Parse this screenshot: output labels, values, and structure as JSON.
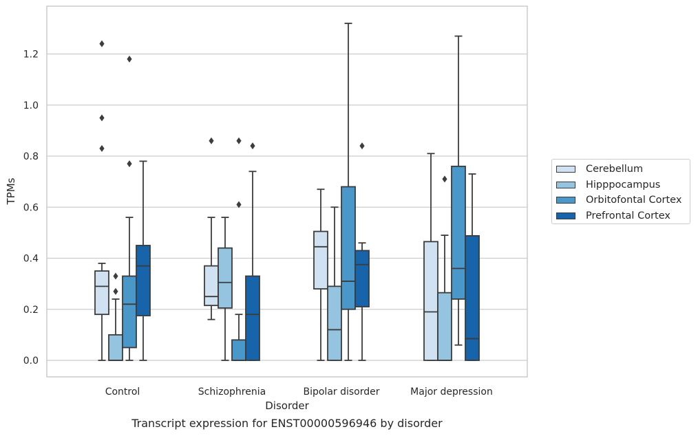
{
  "caption": "Transcript expression for ENST00000596946 by disorder",
  "chart_data": {
    "type": "box",
    "title": "",
    "xlabel": "Disorder",
    "ylabel": "TPMs",
    "ylim": [
      -0.065,
      1.38
    ],
    "yticks": [
      0.0,
      0.2,
      0.4,
      0.6,
      0.8,
      1.0,
      1.2
    ],
    "ytick_labels": [
      "0.0",
      "0.2",
      "0.4",
      "0.6",
      "0.8",
      "1.0",
      "1.2"
    ],
    "categories": [
      "Control",
      "Schizophrenia",
      "Bipolar disorder",
      "Major depression"
    ],
    "grid": "horizontal",
    "legend_position": "outside-right",
    "series": [
      {
        "name": "Cerebellum",
        "color": "#d0e1f2",
        "boxes": [
          {
            "whislo": 0.0,
            "q1": 0.18,
            "med": 0.29,
            "q3": 0.35,
            "whishi": 0.38,
            "fliers": [
              0.83,
              0.95,
              1.24
            ]
          },
          {
            "whislo": 0.16,
            "q1": 0.215,
            "med": 0.25,
            "q3": 0.37,
            "whishi": 0.56,
            "fliers": [
              0.86
            ]
          },
          {
            "whislo": 0.0,
            "q1": 0.28,
            "med": 0.445,
            "q3": 0.505,
            "whishi": 0.67,
            "fliers": []
          },
          {
            "whislo": 0.0,
            "q1": 0.0,
            "med": 0.19,
            "q3": 0.465,
            "whishi": 0.81,
            "fliers": []
          }
        ]
      },
      {
        "name": "Hipppocampus",
        "color": "#94c4df",
        "boxes": [
          {
            "whislo": 0.0,
            "q1": 0.0,
            "med": 0.0,
            "q3": 0.1,
            "whishi": 0.24,
            "fliers": [
              0.27,
              0.33
            ]
          },
          {
            "whislo": 0.0,
            "q1": 0.205,
            "med": 0.305,
            "q3": 0.44,
            "whishi": 0.56,
            "fliers": []
          },
          {
            "whislo": 0.0,
            "q1": 0.0,
            "med": 0.12,
            "q3": 0.29,
            "whishi": 0.6,
            "fliers": []
          },
          {
            "whislo": 0.0,
            "q1": 0.0,
            "med": 0.0,
            "q3": 0.265,
            "whishi": 0.49,
            "fliers": [
              0.71
            ]
          }
        ]
      },
      {
        "name": "Orbitofontal Cortex",
        "color": "#4a98c9",
        "boxes": [
          {
            "whislo": 0.0,
            "q1": 0.05,
            "med": 0.22,
            "q3": 0.33,
            "whishi": 0.56,
            "fliers": [
              0.77,
              1.18
            ]
          },
          {
            "whislo": 0.0,
            "q1": 0.0,
            "med": 0.0,
            "q3": 0.08,
            "whishi": 0.18,
            "fliers": [
              0.61,
              0.86
            ]
          },
          {
            "whislo": 0.0,
            "q1": 0.2,
            "med": 0.31,
            "q3": 0.68,
            "whishi": 1.32,
            "fliers": []
          },
          {
            "whislo": 0.06,
            "q1": 0.24,
            "med": 0.36,
            "q3": 0.76,
            "whishi": 1.27,
            "fliers": []
          }
        ]
      },
      {
        "name": "Prefrontal Cortex",
        "color": "#1764ab",
        "boxes": [
          {
            "whislo": 0.0,
            "q1": 0.175,
            "med": 0.37,
            "q3": 0.45,
            "whishi": 0.78,
            "fliers": []
          },
          {
            "whislo": 0.0,
            "q1": 0.0,
            "med": 0.18,
            "q3": 0.33,
            "whishi": 0.74,
            "fliers": [
              0.84
            ]
          },
          {
            "whislo": 0.0,
            "q1": 0.21,
            "med": 0.375,
            "q3": 0.43,
            "whishi": 0.46,
            "fliers": [
              0.84
            ]
          },
          {
            "whislo": 0.0,
            "q1": 0.0,
            "med": 0.085,
            "q3": 0.488,
            "whishi": 0.73,
            "fliers": []
          }
        ]
      }
    ]
  }
}
